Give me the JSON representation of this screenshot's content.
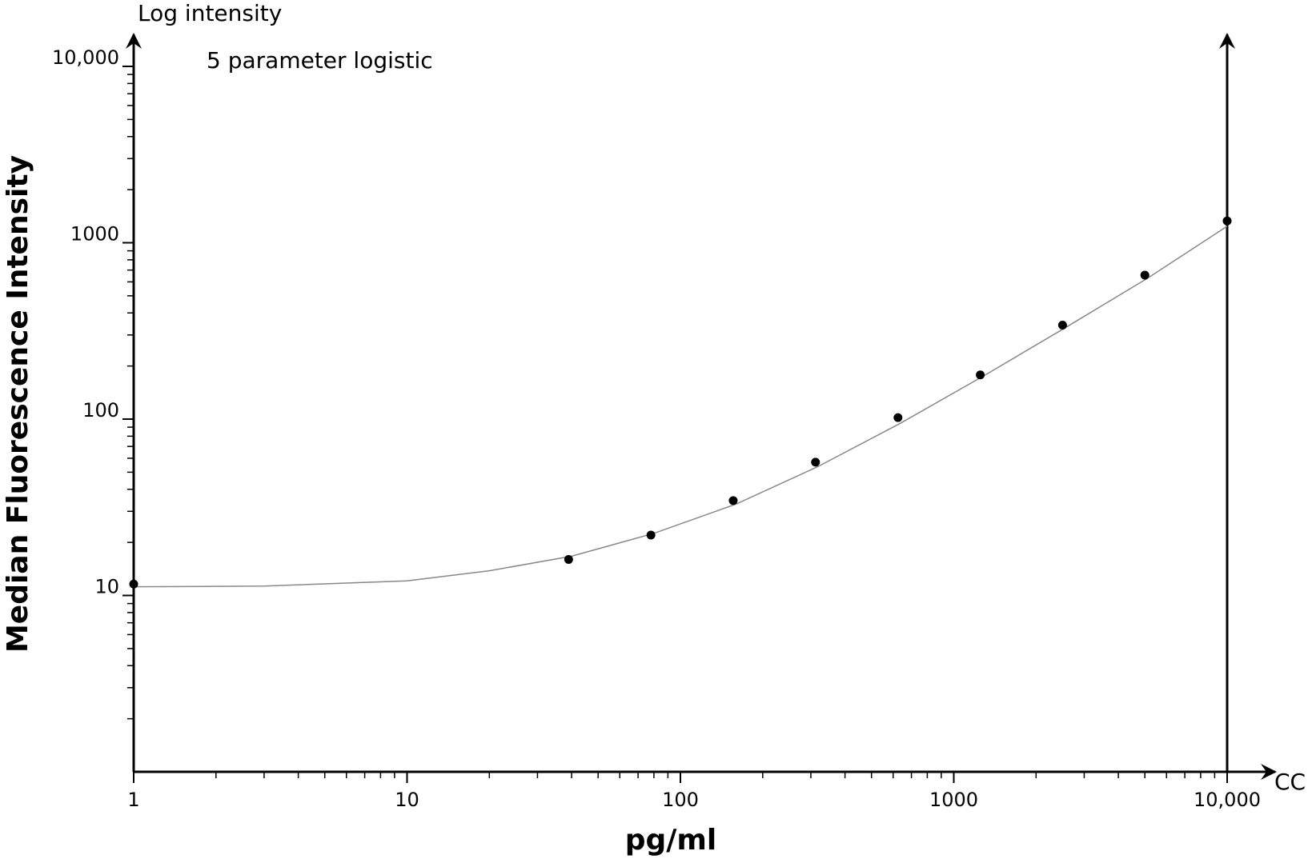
{
  "chart_data": {
    "type": "scatter",
    "title": "5 parameter logistic",
    "y_axis_title": "Log intensity",
    "ylabel": "Median Fluorescence Intensity",
    "xlabel": "pg/ml",
    "x_axis_end_label": "CC",
    "xscale": "log",
    "yscale": "log",
    "xlim": [
      1,
      10000
    ],
    "ylim": [
      1,
      10000
    ],
    "xticks": [
      1,
      10,
      100,
      1000,
      {
        "value": 10000,
        "label": "10,000"
      }
    ],
    "yticks": [
      10,
      100,
      1000,
      {
        "value": 10000,
        "label": "10,000"
      }
    ],
    "minor_ticks": true,
    "grid": false,
    "series": [
      {
        "type": "line",
        "color": "#888888",
        "x": [
          1,
          3,
          10,
          20,
          40,
          80,
          160,
          320,
          640,
          1280,
          2560,
          5120,
          10000
        ],
        "values": [
          11.2,
          11.3,
          12.1,
          13.8,
          16.7,
          22.5,
          33,
          54,
          95,
          175,
          330,
          630,
          1240
        ]
      },
      {
        "type": "scatter",
        "color": "#000000",
        "x": [
          1,
          39,
          78,
          156,
          312,
          625,
          1250,
          2500,
          5000,
          10000
        ],
        "values": [
          11.6,
          16,
          22,
          34.5,
          57,
          102,
          178,
          341,
          655,
          1330
        ]
      }
    ]
  }
}
